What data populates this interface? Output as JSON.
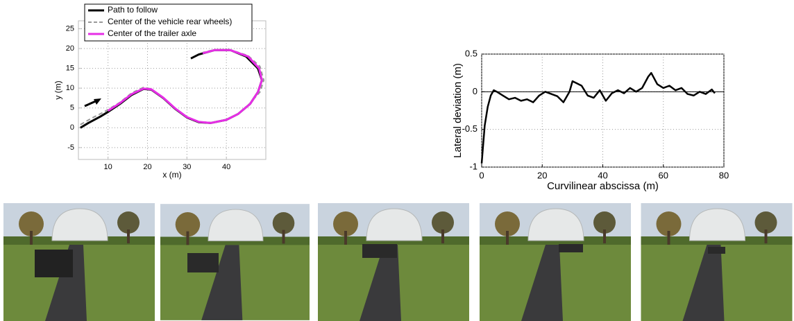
{
  "chart_data": [
    {
      "type": "line",
      "xlabel": "x (m)",
      "ylabel": "y (m)",
      "xlim": [
        2.5,
        50
      ],
      "ylim": [
        -8,
        27
      ],
      "xticks": [
        10,
        20,
        30,
        40
      ],
      "yticks": [
        -5,
        0,
        5,
        10,
        15,
        20,
        25
      ],
      "grid": true,
      "legend": "upper left",
      "series": [
        {
          "name": "Path to follow",
          "color": "#000000",
          "style": "solid",
          "x": [
            3,
            5,
            8,
            10,
            13,
            16,
            19,
            21,
            24,
            27,
            30,
            33,
            36,
            40,
            43,
            46,
            48,
            49,
            48,
            45,
            41,
            37,
            33,
            31
          ],
          "values": [
            0,
            1.2,
            2.8,
            4,
            6,
            8.3,
            9.8,
            9.6,
            7.5,
            4.8,
            2.6,
            1.4,
            1.2,
            2,
            3.5,
            6,
            9,
            12,
            15,
            18,
            19.6,
            19.6,
            18.5,
            17.5
          ]
        },
        {
          "name": "Center of the vehicle rear wheels)",
          "color": "#999999",
          "style": "dashed",
          "x": [
            3,
            6,
            9,
            10,
            13,
            16,
            19,
            21,
            24,
            27,
            30,
            33,
            36,
            40,
            43,
            46,
            48.5,
            49.5,
            48.5,
            45.5,
            41,
            37,
            34
          ],
          "values": [
            0.8,
            2.5,
            4,
            4.6,
            6.4,
            8.8,
            10.2,
            9.8,
            7.5,
            4.8,
            2.6,
            1.5,
            1.3,
            2.1,
            3.6,
            6.2,
            9,
            12,
            15.5,
            18.2,
            19.7,
            19.7,
            19
          ]
        },
        {
          "name": "Center of the trailer axle",
          "color": "#e62ee6",
          "style": "solid",
          "x": [
            10,
            13,
            16,
            19,
            21,
            24,
            27,
            30,
            33,
            36,
            40,
            43,
            46,
            48,
            49,
            48.3,
            45.5,
            41,
            37,
            34
          ],
          "values": [
            4.3,
            6.2,
            8.5,
            9.9,
            9.7,
            7.6,
            4.9,
            2.7,
            1.5,
            1.2,
            2,
            3.5,
            6,
            9,
            12,
            15,
            18,
            19.6,
            19.6,
            18.8
          ]
        }
      ]
    },
    {
      "type": "line",
      "xlabel": "Curvilinear abscissa (m)",
      "ylabel": "Lateral deviation (m)",
      "xlim": [
        0,
        80
      ],
      "ylim": [
        -1,
        0.5
      ],
      "xticks": [
        0,
        20,
        40,
        60,
        80
      ],
      "yticks": [
        -1,
        -0.5,
        0,
        0.5
      ],
      "grid": true,
      "hline": 0,
      "color": "#000000",
      "x": [
        0,
        1,
        2,
        3,
        4,
        5,
        7,
        9,
        11,
        13,
        15,
        17,
        19,
        21,
        23,
        25,
        27,
        29,
        30,
        31,
        33,
        35,
        37,
        39,
        41,
        43,
        45,
        47,
        49,
        51,
        53,
        55,
        56,
        58,
        60,
        62,
        64,
        66,
        68,
        70,
        72,
        74,
        76,
        77
      ],
      "values": [
        -0.95,
        -0.45,
        -0.2,
        -0.05,
        0.02,
        0,
        -0.05,
        -0.1,
        -0.08,
        -0.12,
        -0.1,
        -0.14,
        -0.05,
        0,
        -0.03,
        -0.06,
        -0.14,
        0,
        0.14,
        0.12,
        0.08,
        -0.05,
        -0.08,
        0.02,
        -0.12,
        -0.02,
        0.02,
        -0.02,
        0.05,
        0,
        0.05,
        0.2,
        0.25,
        0.1,
        0.05,
        0.08,
        0.02,
        0.05,
        -0.03,
        -0.05,
        0,
        -0.03,
        0.03,
        -0.02
      ]
    }
  ]
}
